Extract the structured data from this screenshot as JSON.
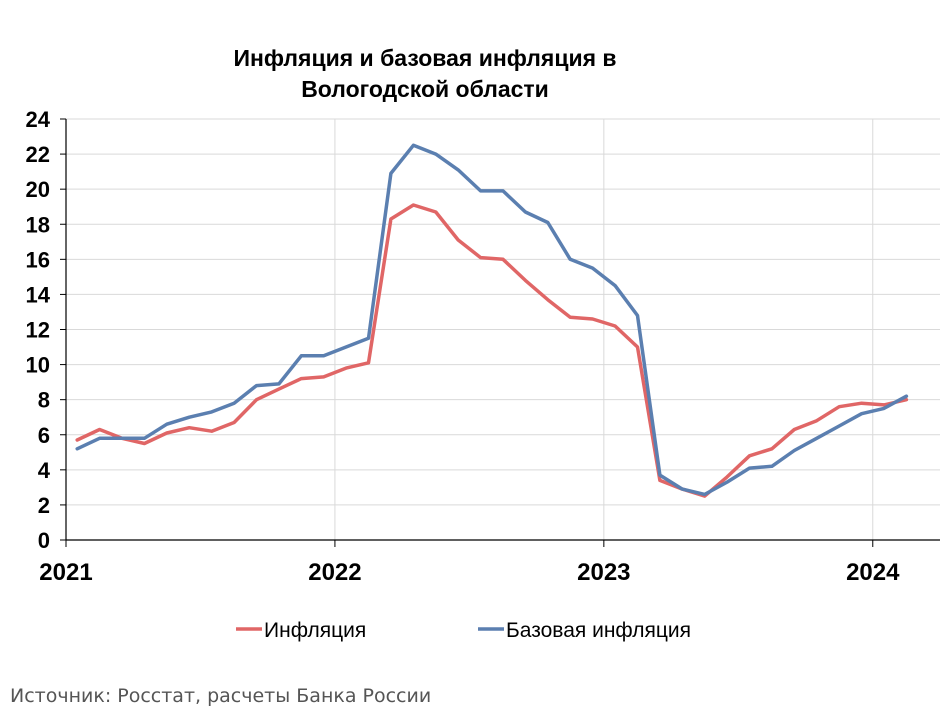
{
  "chart_data": {
    "type": "line",
    "title_lines": [
      "Инфляция и базовая инфляция в",
      "Вологодской области"
    ],
    "xlabel": "",
    "ylabel": "",
    "ylim": [
      0,
      24
    ],
    "yticks": [
      0,
      2,
      4,
      6,
      8,
      10,
      12,
      14,
      16,
      18,
      20,
      22,
      24
    ],
    "xlim": [
      2021.0,
      2024.25
    ],
    "xticks": [
      {
        "label": "2021",
        "value": 2021.0
      },
      {
        "label": "2022",
        "value": 2022.0
      },
      {
        "label": "2023",
        "value": 2023.0
      },
      {
        "label": "2024",
        "value": 2024.0
      }
    ],
    "grid": true,
    "legend_position": "bottom",
    "x_months": [
      "2021-01",
      "2021-02",
      "2021-03",
      "2021-04",
      "2021-05",
      "2021-06",
      "2021-07",
      "2021-08",
      "2021-09",
      "2021-10",
      "2021-11",
      "2021-12",
      "2022-01",
      "2022-02",
      "2022-03",
      "2022-04",
      "2022-05",
      "2022-06",
      "2022-07",
      "2022-08",
      "2022-09",
      "2022-10",
      "2022-11",
      "2022-12",
      "2023-01",
      "2023-02",
      "2023-03",
      "2023-04",
      "2023-05",
      "2023-06",
      "2023-07",
      "2023-08",
      "2023-09",
      "2023-10",
      "2023-11",
      "2023-12",
      "2024-01",
      "2024-02"
    ],
    "series": [
      {
        "name": "Инфляция",
        "color": "#E06666",
        "values": [
          5.7,
          6.3,
          5.8,
          5.5,
          6.1,
          6.4,
          6.2,
          6.7,
          8.0,
          8.6,
          9.2,
          9.3,
          9.8,
          10.1,
          18.3,
          19.1,
          18.7,
          17.1,
          16.1,
          16.0,
          14.8,
          13.7,
          12.7,
          12.6,
          12.2,
          11.0,
          3.4,
          2.9,
          2.5,
          3.6,
          4.8,
          5.2,
          6.3,
          6.8,
          7.6,
          7.8,
          7.7,
          8.0
        ]
      },
      {
        "name": "Базовая инфляция",
        "color": "#5B7FB0",
        "values": [
          5.2,
          5.8,
          5.8,
          5.8,
          6.6,
          7.0,
          7.3,
          7.8,
          8.8,
          8.9,
          10.5,
          10.5,
          11.0,
          11.5,
          20.9,
          22.5,
          22.0,
          21.1,
          19.9,
          19.9,
          18.7,
          18.1,
          16.0,
          15.5,
          14.5,
          12.8,
          3.7,
          2.9,
          2.6,
          3.3,
          4.1,
          4.2,
          5.1,
          5.8,
          6.5,
          7.2,
          7.5,
          8.2
        ]
      }
    ]
  },
  "source": "Источник: Росстат, расчеты Банка России"
}
